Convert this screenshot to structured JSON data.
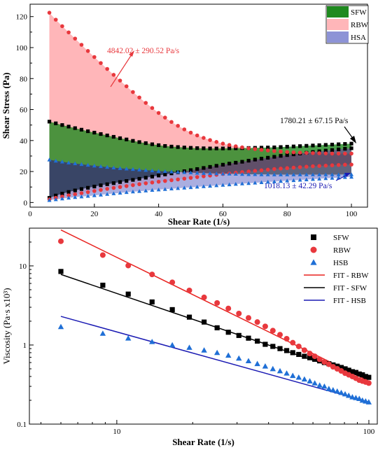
{
  "chart_data": [
    {
      "type": "area",
      "xlabel": "Shear Rate (1/s)",
      "ylabel": "Shear Stress (Pa)",
      "xlim": [
        0,
        105
      ],
      "ylim": [
        -3,
        128
      ],
      "xticks": [
        0,
        20,
        40,
        60,
        80,
        100
      ],
      "yticks": [
        0,
        20,
        40,
        60,
        80,
        100,
        120
      ],
      "x_ticklabels": [
        "0",
        "20",
        "40",
        "60",
        "80",
        "100"
      ],
      "y_ticklabels": [
        "0",
        "20",
        "40",
        "60",
        "80",
        "100",
        "120"
      ],
      "legend": {
        "placement": "top-right",
        "entries": [
          "SFW",
          "RBW",
          "HSA"
        ]
      },
      "x": [
        6,
        8,
        10,
        12,
        14,
        16,
        18,
        20,
        22,
        24,
        26,
        28,
        30,
        32,
        34,
        36,
        38,
        40,
        42,
        44,
        46,
        48,
        50,
        52,
        54,
        56,
        58,
        60,
        62,
        64,
        66,
        68,
        70,
        72,
        74,
        76,
        78,
        80,
        82,
        84,
        86,
        88,
        90,
        92,
        94,
        96,
        98,
        100
      ],
      "series": [
        {
          "name": "SFW",
          "color": "#1f8a1f",
          "marker_color": "#000000",
          "marker": "square",
          "upper": [
            52.2,
            51.1,
            50.0,
            49.0,
            48.0,
            47.0,
            46.0,
            45.1,
            44.2,
            43.3,
            42.4,
            41.5,
            40.7,
            39.8,
            39.0,
            38.3,
            37.6,
            37.0,
            36.5,
            36.1,
            35.8,
            35.5,
            35.3,
            35.1,
            35.0,
            34.9,
            34.9,
            34.9,
            35.0,
            35.0,
            35.1,
            35.2,
            35.3,
            35.4,
            35.5,
            35.6,
            35.8,
            36.0,
            36.2,
            36.4,
            36.6,
            36.8,
            37.0,
            37.2,
            37.4,
            37.6,
            37.8,
            38.0
          ],
          "lower": [
            3.0,
            4.5,
            5.7,
            6.8,
            7.8,
            8.7,
            9.5,
            10.3,
            11.1,
            11.8,
            12.5,
            13.2,
            13.9,
            14.6,
            15.3,
            16.0,
            16.7,
            17.4,
            18.1,
            18.8,
            19.5,
            20.2,
            20.9,
            21.6,
            22.3,
            23.0,
            23.7,
            24.4,
            25.1,
            25.7,
            26.3,
            27.0,
            27.7,
            28.3,
            28.9,
            29.5,
            30.1,
            30.6,
            31.1,
            31.6,
            32.1,
            32.6,
            33.1,
            33.5,
            33.9,
            34.3,
            34.7,
            35.0
          ]
        },
        {
          "name": "RBW",
          "color": "#ffb6b9",
          "marker_color": "#e8383d",
          "marker": "circle",
          "upper": [
            122.5,
            118.0,
            113.8,
            109.8,
            105.8,
            101.8,
            97.8,
            93.9,
            90.0,
            86.2,
            82.4,
            78.7,
            75.0,
            71.3,
            67.8,
            64.3,
            61.0,
            57.8,
            54.8,
            52.0,
            49.5,
            47.2,
            45.1,
            43.3,
            41.7,
            40.3,
            39.1,
            38.0,
            37.1,
            36.3,
            35.6,
            35.0,
            34.5,
            34.0,
            33.6,
            33.2,
            32.9,
            32.6,
            32.4,
            32.2,
            32.0,
            31.9,
            31.8,
            31.7,
            31.6,
            31.6,
            31.6,
            31.6
          ],
          "lower": [
            2.0,
            3.0,
            3.8,
            4.6,
            5.3,
            6.0,
            6.7,
            7.4,
            8.1,
            8.8,
            9.4,
            10.0,
            10.6,
            11.2,
            11.8,
            12.4,
            12.9,
            13.4,
            13.9,
            14.4,
            14.9,
            15.4,
            15.9,
            16.4,
            16.9,
            17.4,
            17.9,
            18.4,
            18.8,
            19.2,
            19.6,
            20.0,
            20.4,
            20.8,
            21.2,
            21.6,
            21.9,
            22.2,
            22.5,
            22.8,
            23.1,
            23.4,
            23.6,
            23.8,
            24.0,
            24.2,
            24.4,
            24.5
          ]
        },
        {
          "name": "HSA",
          "color": "#8d93d6",
          "marker_color": "#1f6fd6",
          "marker": "triangle",
          "upper": [
            27.6,
            26.9,
            26.3,
            25.7,
            25.2,
            24.7,
            24.2,
            23.7,
            23.3,
            22.9,
            22.5,
            22.1,
            21.8,
            21.5,
            21.2,
            20.9,
            20.6,
            20.3,
            20.1,
            19.9,
            19.7,
            19.5,
            19.3,
            19.1,
            18.9,
            18.8,
            18.7,
            18.6,
            18.5,
            18.4,
            18.3,
            18.2,
            18.2,
            18.1,
            18.1,
            18.0,
            18.0,
            18.0,
            18.0,
            18.0,
            18.0,
            18.0,
            18.0,
            18.0,
            18.0,
            18.0,
            18.1,
            18.1
          ],
          "lower": [
            1.5,
            2.0,
            2.5,
            3.0,
            3.4,
            3.8,
            4.2,
            4.6,
            5.0,
            5.4,
            5.8,
            6.2,
            6.6,
            7.0,
            7.3,
            7.6,
            8.0,
            8.3,
            8.6,
            8.9,
            9.2,
            9.5,
            9.8,
            10.1,
            10.4,
            10.7,
            11.0,
            11.3,
            11.6,
            11.9,
            12.2,
            12.4,
            12.7,
            13.0,
            13.3,
            13.5,
            13.8,
            14.1,
            14.3,
            14.6,
            14.8,
            15.1,
            15.3,
            15.6,
            15.8,
            16.0,
            16.3,
            16.5
          ]
        }
      ],
      "annotations": [
        {
          "text": "4842.02 ± 290.52 Pa/s",
          "color": "#e8383d"
        },
        {
          "text": "1780.21 ± 67.15 Pa/s",
          "color": "#000000"
        },
        {
          "text": "1018.13 ± 42.29 Pa/s",
          "color": "#1a1ab3"
        }
      ]
    },
    {
      "type": "scatter",
      "xlabel": "Shear Rate (1/s)",
      "ylabel": "Viscosity (Pa·s x10³)",
      "xscale": "log",
      "yscale": "log",
      "xlim": [
        4.5,
        108
      ],
      "ylim": [
        0.1,
        30
      ],
      "xticks": [
        10,
        100
      ],
      "yticks": [
        0.1,
        1,
        10
      ],
      "x_ticklabels": [
        "10",
        "100"
      ],
      "y_ticklabels": [
        "0.1",
        "1",
        "10"
      ],
      "legend": {
        "placement": "top-right",
        "entries": [
          "SFW",
          "RBW",
          "HSB",
          "FIT - RBW",
          "FIT - SFW",
          "FIT - HSB"
        ]
      },
      "series": [
        {
          "name": "SFW",
          "marker": "square",
          "color": "#000000",
          "x": [
            6,
            8.8,
            11.1,
            13.8,
            16.6,
            19.4,
            22.2,
            25,
            27.7,
            30.5,
            33.3,
            36.1,
            38.8,
            41.6,
            44.4,
            47.2,
            49.9,
            52.7,
            55.5,
            58.3,
            61,
            63.8,
            66.6,
            69.4,
            72.1,
            74.9,
            77.7,
            80.5,
            83.2,
            86,
            88.8,
            91.6,
            94.3,
            97.1,
            99.9
          ],
          "values": [
            8.5,
            5.7,
            4.4,
            3.5,
            2.8,
            2.25,
            1.95,
            1.65,
            1.45,
            1.32,
            1.22,
            1.12,
            1.02,
            0.96,
            0.9,
            0.85,
            0.8,
            0.76,
            0.72,
            0.69,
            0.66,
            0.63,
            0.6,
            0.58,
            0.56,
            0.54,
            0.52,
            0.5,
            0.48,
            0.46,
            0.45,
            0.43,
            0.42,
            0.4,
            0.39
          ]
        },
        {
          "name": "RBW",
          "marker": "circle",
          "color": "#e8383d",
          "x": [
            6,
            8.8,
            11.1,
            13.8,
            16.6,
            19.4,
            22.2,
            25,
            27.7,
            30.5,
            33.3,
            36.1,
            38.8,
            41.6,
            44.4,
            47.2,
            49.9,
            52.7,
            55.5,
            58.3,
            61,
            63.8,
            66.6,
            69.4,
            72.1,
            74.9,
            77.7,
            80.5,
            83.2,
            86,
            88.8,
            91.6,
            94.3,
            97.1,
            99.9
          ],
          "values": [
            20.5,
            13.7,
            10.1,
            7.8,
            6.2,
            4.9,
            4.0,
            3.4,
            2.9,
            2.5,
            2.2,
            1.95,
            1.72,
            1.52,
            1.35,
            1.2,
            1.07,
            0.96,
            0.86,
            0.78,
            0.72,
            0.66,
            0.61,
            0.57,
            0.53,
            0.5,
            0.47,
            0.44,
            0.42,
            0.4,
            0.38,
            0.36,
            0.35,
            0.34,
            0.33
          ]
        },
        {
          "name": "HSB",
          "marker": "triangle",
          "color": "#1f6fd6",
          "x": [
            6,
            8.8,
            11.1,
            13.8,
            16.6,
            19.4,
            22.2,
            25,
            27.7,
            30.5,
            33.3,
            36.1,
            38.8,
            41.6,
            44.4,
            47.2,
            49.9,
            52.7,
            55.5,
            58.3,
            61,
            63.8,
            66.6,
            69.4,
            72.1,
            74.9,
            77.7,
            80.5,
            83.2,
            86,
            88.8,
            91.6,
            94.3,
            97.1,
            99.9
          ],
          "values": [
            1.7,
            1.4,
            1.22,
            1.1,
            1.0,
            0.93,
            0.86,
            0.8,
            0.74,
            0.68,
            0.63,
            0.58,
            0.54,
            0.5,
            0.47,
            0.44,
            0.41,
            0.39,
            0.37,
            0.35,
            0.33,
            0.31,
            0.3,
            0.28,
            0.27,
            0.26,
            0.25,
            0.24,
            0.23,
            0.22,
            0.215,
            0.21,
            0.2,
            0.195,
            0.19
          ]
        }
      ],
      "fits": [
        {
          "name": "FIT - RBW",
          "color": "#e8221f",
          "x": [
            6,
            100
          ],
          "values": [
            28.5,
            0.35
          ]
        },
        {
          "name": "FIT - SFW",
          "color": "#000000",
          "x": [
            6,
            100
          ],
          "values": [
            7.8,
            0.37
          ]
        },
        {
          "name": "FIT - HSB",
          "color": "#1a1ab3",
          "x": [
            6,
            100
          ],
          "values": [
            2.3,
            0.19
          ]
        }
      ]
    }
  ]
}
